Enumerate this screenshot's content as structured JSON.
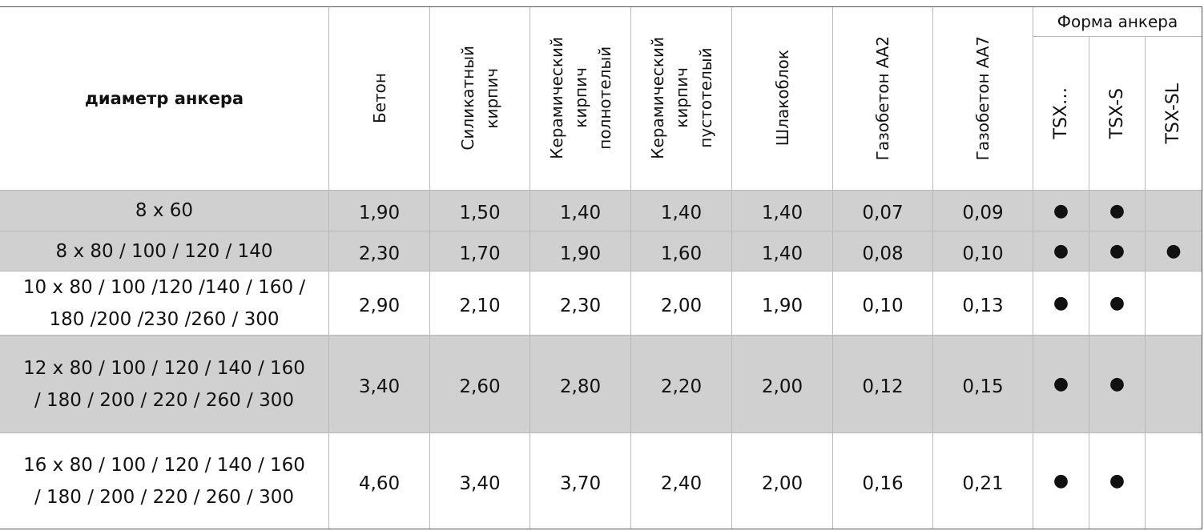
{
  "header": {
    "anchor_diameter": "диаметр анкера",
    "materials": [
      [
        "Бетон"
      ],
      [
        "Силикатный",
        "кирпич"
      ],
      [
        "Керамический",
        "кирпич",
        "полнотелый"
      ],
      [
        "Керамический",
        "кирпич",
        "пустотелый"
      ],
      [
        "Шлакоблок"
      ],
      [
        "Газобетон АА2"
      ],
      [
        "Газобетон АА7"
      ]
    ],
    "shape_group": "Форма анкера",
    "shapes": [
      "TSX…",
      "TSX-S",
      "TSX-SL"
    ]
  },
  "rows": [
    {
      "diameter": [
        "8 x 60"
      ],
      "values": [
        "1,90",
        "1,50",
        "1,40",
        "1,40",
        "1,40",
        "0,07",
        "0,09"
      ],
      "shapes": [
        "●",
        "●",
        null
      ]
    },
    {
      "diameter": [
        "8 x 80 / 100 / 120 / 140"
      ],
      "values": [
        "2,30",
        "1,70",
        "1,90",
        "1,60",
        "1,40",
        "0,08",
        "0,10"
      ],
      "shapes": [
        "●",
        "●",
        "●"
      ]
    },
    {
      "diameter": [
        "10 x 80 / 100 /120 /140 / 160 /",
        "180 /200 /230 /260 / 300"
      ],
      "values": [
        "2,90",
        "2,10",
        "2,30",
        "2,00",
        "1,90",
        "0,10",
        "0,13"
      ],
      "shapes": [
        "●",
        "●",
        null
      ]
    },
    {
      "diameter": [
        "12 x 80 / 100 / 120 / 140 / 160",
        "/ 180 / 200 / 220 / 260 / 300"
      ],
      "values": [
        "3,40",
        "2,60",
        "2,80",
        "2,20",
        "2,00",
        "0,12",
        "0,15"
      ],
      "shapes": [
        "●",
        "●",
        null
      ]
    },
    {
      "diameter": [
        "16 x 80 / 100 / 120 / 140 / 160",
        "/ 180 / 200 / 220 / 260 / 300"
      ],
      "values": [
        "4,60",
        "3,40",
        "3,70",
        "2,40",
        "2,00",
        "0,16",
        "0,21"
      ],
      "shapes": [
        "●",
        "●",
        null
      ]
    }
  ]
}
